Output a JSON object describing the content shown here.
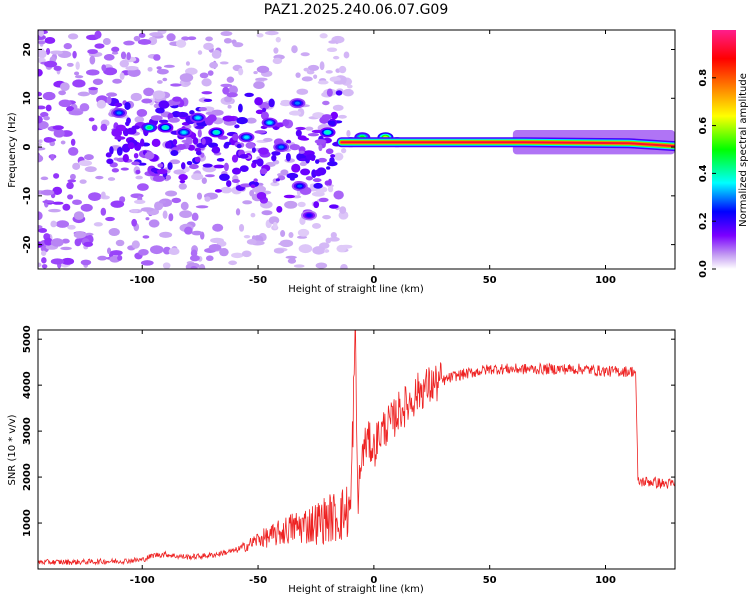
{
  "title": "PAZ1.2025.240.06.07.G09",
  "chart_data": [
    {
      "type": "heatmap",
      "title": "PAZ1.2025.240.06.07.G09",
      "xlabel": "Height of straight line (km)",
      "ylabel": "Frequency (Hz)",
      "xlim": [
        -145,
        130
      ],
      "ylim": [
        -25,
        24
      ],
      "xticks": [
        -100,
        -50,
        0,
        50,
        100
      ],
      "yticks": [
        -20,
        -10,
        0,
        10,
        20
      ],
      "colorbar": {
        "label": "Normalized spectral amplitude",
        "range": [
          0,
          1
        ],
        "ticks": [
          0.0,
          0.2,
          0.4,
          0.6,
          0.8
        ],
        "colors": [
          "#ffffff",
          "#c29af2",
          "#7b00ff",
          "#0000ff",
          "#00ffff",
          "#00ff00",
          "#ffff00",
          "#ff8000",
          "#ff0000",
          "#ff1e8c"
        ]
      },
      "ridge": {
        "description": "dominant frequency line",
        "points": [
          [
            -14,
            1.0
          ],
          [
            15,
            1.0
          ],
          [
            65,
            1.0
          ],
          [
            110,
            0.8
          ],
          [
            130,
            0.2
          ]
        ],
        "peak_amplitude": 0.95
      },
      "scatter_blobs": [
        {
          "x": -110,
          "y": 7,
          "amp": 0.3
        },
        {
          "x": -97,
          "y": 4,
          "amp": 0.45
        },
        {
          "x": -90,
          "y": 4,
          "amp": 0.4
        },
        {
          "x": -82,
          "y": 3,
          "amp": 0.35
        },
        {
          "x": -76,
          "y": 6,
          "amp": 0.35
        },
        {
          "x": -68,
          "y": 3,
          "amp": 0.4
        },
        {
          "x": -55,
          "y": 2,
          "amp": 0.35
        },
        {
          "x": -45,
          "y": 5,
          "amp": 0.35
        },
        {
          "x": -40,
          "y": 0,
          "amp": 0.3
        },
        {
          "x": -33,
          "y": 9,
          "amp": 0.3
        },
        {
          "x": -32,
          "y": -8,
          "amp": 0.28
        },
        {
          "x": -28,
          "y": -14,
          "amp": 0.22
        },
        {
          "x": -20,
          "y": 3,
          "amp": 0.4
        },
        {
          "x": -10,
          "y": 1,
          "amp": 0.55
        },
        {
          "x": -5,
          "y": 2,
          "amp": 0.5
        },
        {
          "x": 5,
          "y": 2,
          "amp": 0.6
        },
        {
          "x": 10,
          "y": 1,
          "amp": 0.75
        }
      ]
    },
    {
      "type": "line",
      "xlabel": "Height of straight line (km)",
      "ylabel": "SNR (10 * v/v)",
      "xlim": [
        -145,
        130
      ],
      "ylim": [
        0,
        5200
      ],
      "xticks": [
        -100,
        -50,
        0,
        50,
        100
      ],
      "yticks": [
        1000,
        2000,
        3000,
        4000,
        5000
      ],
      "color": "#ee2222",
      "series": [
        {
          "name": "SNR",
          "x": [
            -145,
            -130,
            -120,
            -110,
            -100,
            -95,
            -90,
            -85,
            -80,
            -70,
            -60,
            -55,
            -50,
            -45,
            -40,
            -35,
            -30,
            -25,
            -20,
            -15,
            -10,
            -8,
            -7,
            -6,
            -5,
            -3,
            -1,
            0,
            2,
            5,
            8,
            10,
            15,
            20,
            25,
            30,
            35,
            40,
            45,
            50,
            60,
            70,
            80,
            90,
            100,
            110,
            113,
            114,
            115,
            120,
            125,
            130
          ],
          "values": [
            150,
            150,
            160,
            170,
            200,
            300,
            320,
            280,
            260,
            300,
            400,
            500,
            650,
            700,
            800,
            900,
            950,
            1000,
            1100,
            1150,
            1300,
            5200,
            1500,
            2000,
            2500,
            2800,
            2700,
            2600,
            2900,
            3100,
            3200,
            3400,
            3600,
            3900,
            4000,
            4100,
            4200,
            4250,
            4300,
            4350,
            4350,
            4350,
            4350,
            4350,
            4300,
            4300,
            4300,
            1900,
            1900,
            1900,
            1850,
            1850
          ]
        }
      ],
      "noise_amplitude": 180
    }
  ]
}
